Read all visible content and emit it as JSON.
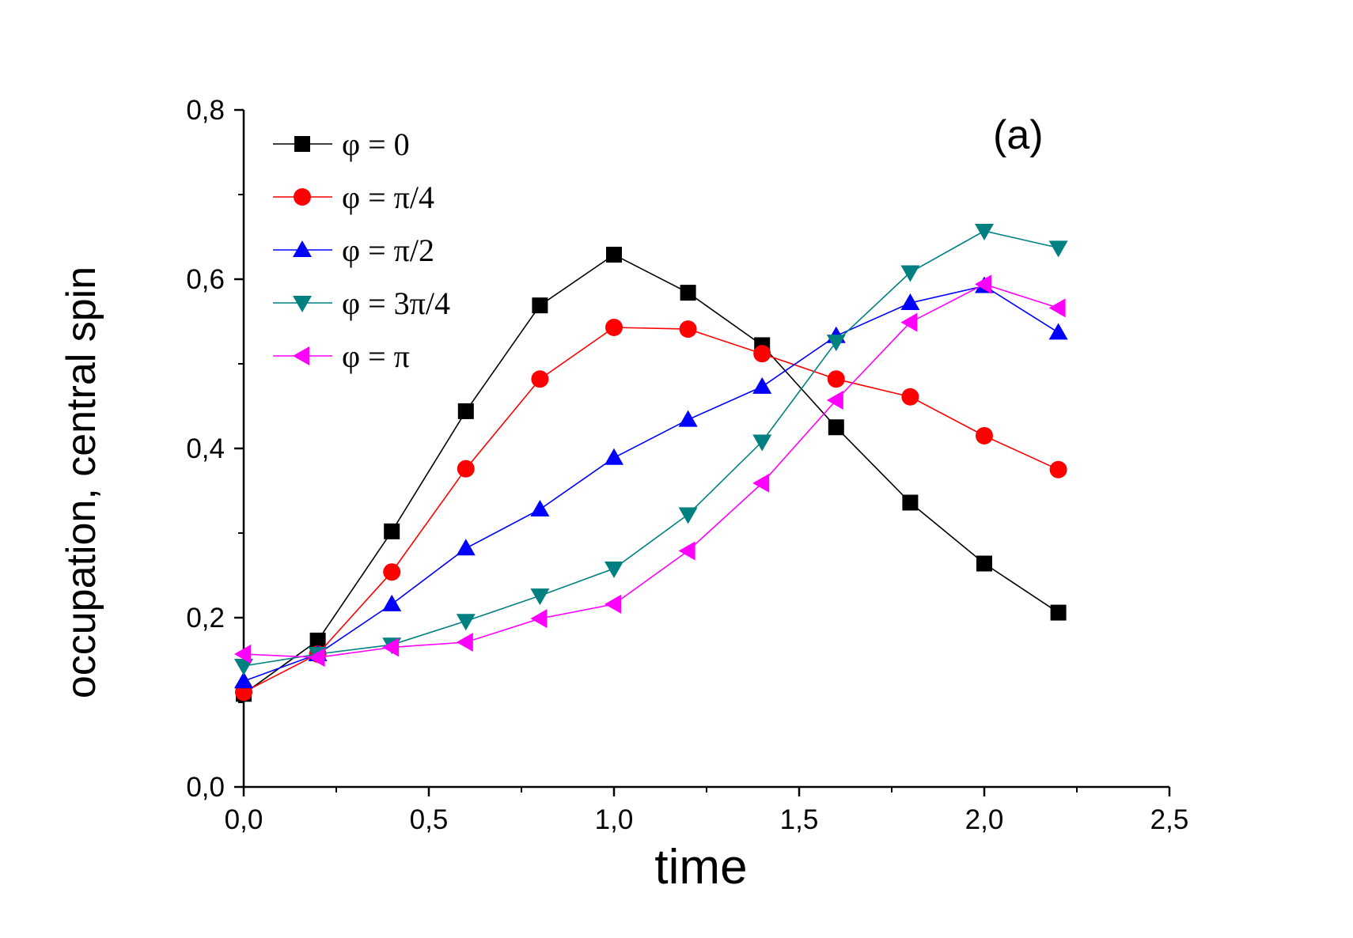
{
  "chart_data": {
    "type": "line",
    "panel_label": "(a)",
    "xlabel": "time",
    "ylabel": "occupation, central spin",
    "xlim": [
      0,
      2.5
    ],
    "ylim": [
      0,
      0.8
    ],
    "x_ticks": [
      "0,0",
      "0,5",
      "1,0",
      "1,5",
      "2,0",
      "2,5"
    ],
    "y_ticks": [
      "0,0",
      "0,2",
      "0,4",
      "0,6",
      "0,8"
    ],
    "legend_position": "top-left",
    "x": [
      0.0,
      0.2,
      0.4,
      0.6,
      0.8,
      1.0,
      1.2,
      1.4,
      1.6,
      1.8,
      2.0,
      2.2
    ],
    "series": [
      {
        "name": "φ = 0",
        "color": "#000000",
        "marker": "square",
        "values": [
          0.11,
          0.173,
          0.302,
          0.444,
          0.569,
          0.629,
          0.584,
          0.522,
          0.425,
          0.336,
          0.264,
          0.206
        ]
      },
      {
        "name": "φ = π/4",
        "color": "#ff0000",
        "marker": "circle",
        "values": [
          0.112,
          0.157,
          0.254,
          0.376,
          0.482,
          0.543,
          0.541,
          0.512,
          0.482,
          0.461,
          0.415,
          0.375
        ]
      },
      {
        "name": "φ = π/2",
        "color": "#0000ff",
        "marker": "triangle-up",
        "values": [
          0.125,
          0.157,
          0.216,
          0.282,
          0.328,
          0.389,
          0.434,
          0.473,
          0.533,
          0.572,
          0.592,
          0.537
        ]
      },
      {
        "name": "φ = 3π/4",
        "color": "#008080",
        "marker": "triangle-down",
        "values": [
          0.143,
          0.157,
          0.168,
          0.196,
          0.226,
          0.258,
          0.322,
          0.408,
          0.526,
          0.608,
          0.657,
          0.637
        ]
      },
      {
        "name": "φ = π",
        "color": "#ff00ff",
        "marker": "triangle-left",
        "values": [
          0.157,
          0.153,
          0.165,
          0.171,
          0.199,
          0.216,
          0.279,
          0.359,
          0.457,
          0.549,
          0.594,
          0.566
        ]
      }
    ]
  }
}
